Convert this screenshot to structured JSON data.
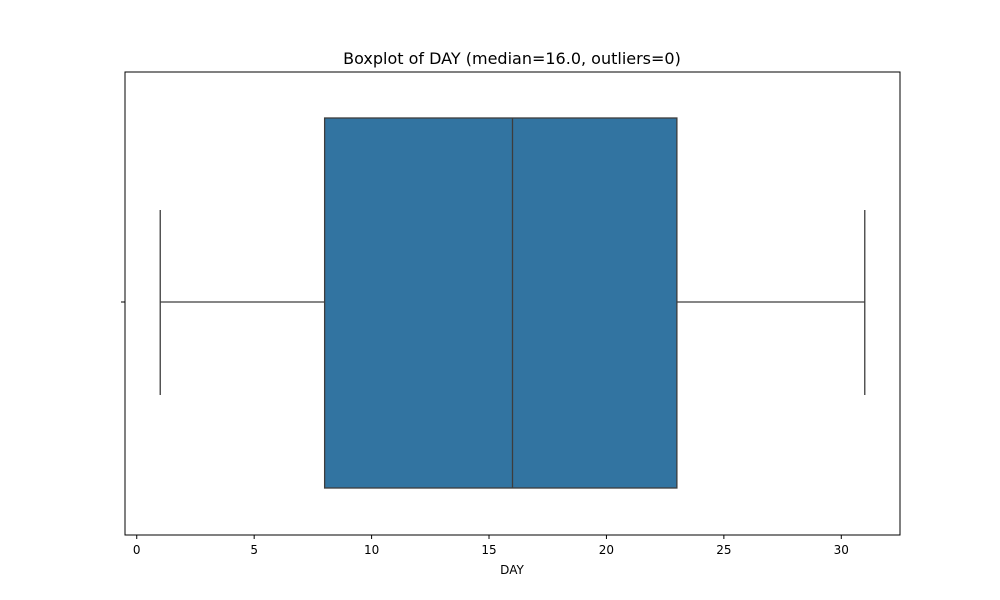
{
  "chart_data": {
    "type": "boxplot",
    "title": "Boxplot of DAY (median=16.0, outliers=0)",
    "xlabel": "DAY",
    "ylabel": "",
    "orientation": "horizontal",
    "xlim": [
      -0.5,
      32.5
    ],
    "x_ticks": [
      0,
      5,
      10,
      15,
      20,
      25,
      30
    ],
    "x_tick_labels": [
      "0",
      "5",
      "10",
      "15",
      "20",
      "25",
      "30"
    ],
    "grid": false,
    "box": {
      "whisker_low": 1,
      "q1": 8,
      "median": 16,
      "q3": 23,
      "whisker_high": 31,
      "outliers": []
    },
    "colors": {
      "box_fill": "#3274a1",
      "line": "#3d3d3d"
    }
  }
}
